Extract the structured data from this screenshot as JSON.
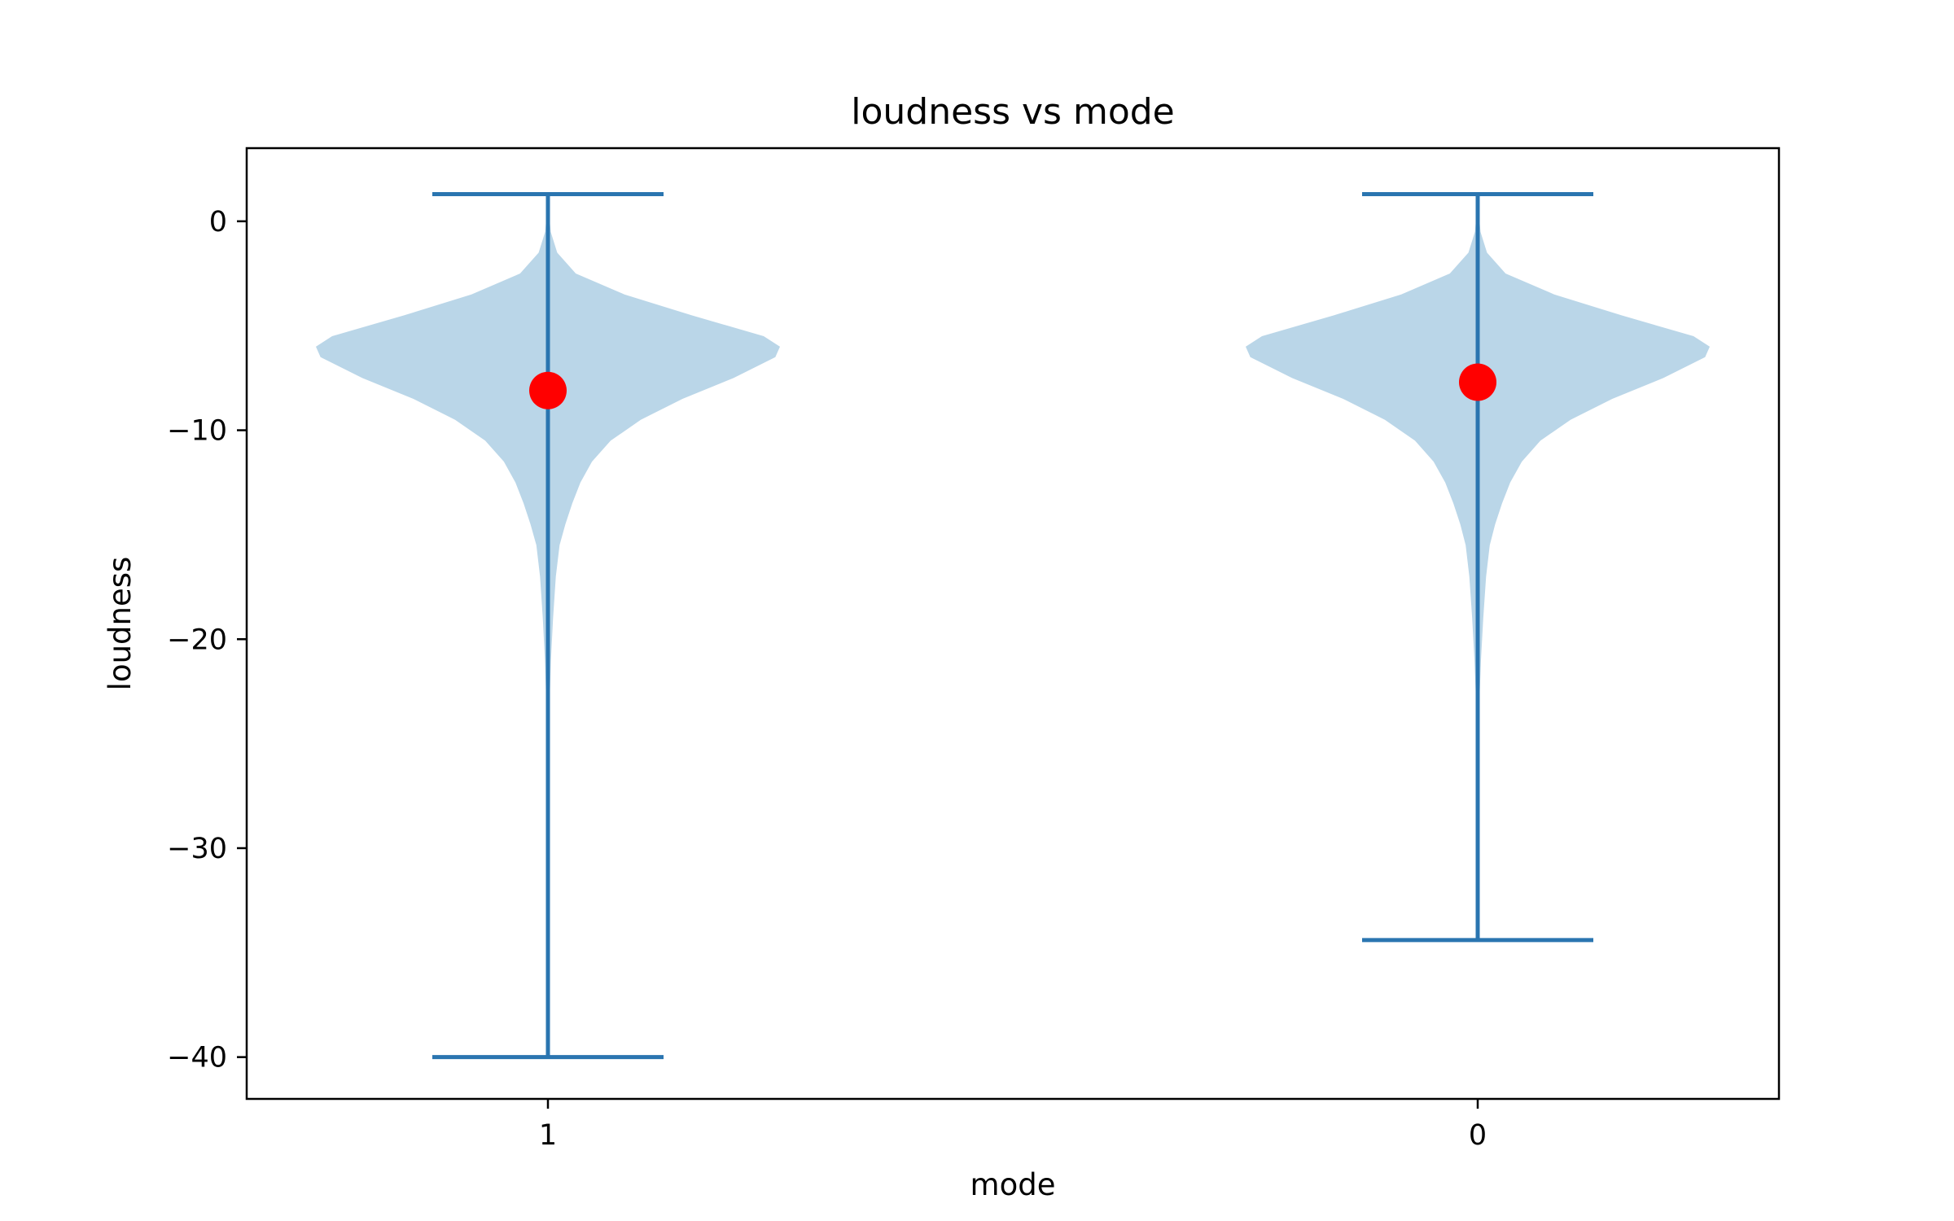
{
  "chart_data": {
    "type": "violin",
    "title": "loudness vs mode",
    "xlabel": "mode",
    "ylabel": "loudness",
    "categories": [
      "1",
      "0"
    ],
    "ylim": [
      -42,
      3.5
    ],
    "yticks": [
      0,
      -10,
      -20,
      -30,
      -40
    ],
    "ytick_labels": [
      "0",
      "−10",
      "−20",
      "−30",
      "−40"
    ],
    "grid": false,
    "colors": {
      "body": "#bad6e8",
      "lines": "#2a75b0",
      "mean_marker": "#ff0000",
      "axes": "#000000"
    },
    "violins": [
      {
        "category": "1",
        "min": -40.0,
        "max": 1.3,
        "mean": -8.1,
        "profile": [
          [
            1.3,
            0.0
          ],
          [
            0.5,
            0.004
          ],
          [
            -0.5,
            0.012
          ],
          [
            -1.5,
            0.04
          ],
          [
            -2.5,
            0.12
          ],
          [
            -3.5,
            0.33
          ],
          [
            -4.5,
            0.62
          ],
          [
            -5.5,
            0.93
          ],
          [
            -6.0,
            1.0
          ],
          [
            -6.5,
            0.98
          ],
          [
            -7.5,
            0.8
          ],
          [
            -8.5,
            0.58
          ],
          [
            -9.5,
            0.4
          ],
          [
            -10.5,
            0.27
          ],
          [
            -11.5,
            0.19
          ],
          [
            -12.5,
            0.14
          ],
          [
            -13.5,
            0.105
          ],
          [
            -14.5,
            0.075
          ],
          [
            -15.5,
            0.05
          ],
          [
            -17.0,
            0.034
          ],
          [
            -19.0,
            0.022
          ],
          [
            -21.0,
            0.013
          ],
          [
            -23.0,
            0.007
          ],
          [
            -25.0,
            0.003
          ],
          [
            -28.0,
            0.001
          ],
          [
            -32.0,
            0.0003
          ],
          [
            -40.0,
            0.0
          ]
        ]
      },
      {
        "category": "0",
        "min": -34.4,
        "max": 1.3,
        "mean": -7.7,
        "profile": [
          [
            1.3,
            0.0
          ],
          [
            0.5,
            0.004
          ],
          [
            -0.5,
            0.012
          ],
          [
            -1.5,
            0.04
          ],
          [
            -2.5,
            0.12
          ],
          [
            -3.5,
            0.33
          ],
          [
            -4.5,
            0.62
          ],
          [
            -5.5,
            0.93
          ],
          [
            -6.0,
            1.0
          ],
          [
            -6.5,
            0.98
          ],
          [
            -7.5,
            0.8
          ],
          [
            -8.5,
            0.58
          ],
          [
            -9.5,
            0.4
          ],
          [
            -10.5,
            0.27
          ],
          [
            -11.5,
            0.19
          ],
          [
            -12.5,
            0.14
          ],
          [
            -13.5,
            0.105
          ],
          [
            -14.5,
            0.075
          ],
          [
            -15.5,
            0.052
          ],
          [
            -17.0,
            0.036
          ],
          [
            -19.0,
            0.024
          ],
          [
            -21.0,
            0.014
          ],
          [
            -23.0,
            0.007
          ],
          [
            -25.0,
            0.003
          ],
          [
            -28.0,
            0.001
          ],
          [
            -31.0,
            0.0003
          ],
          [
            -34.4,
            0.0
          ]
        ]
      }
    ]
  }
}
